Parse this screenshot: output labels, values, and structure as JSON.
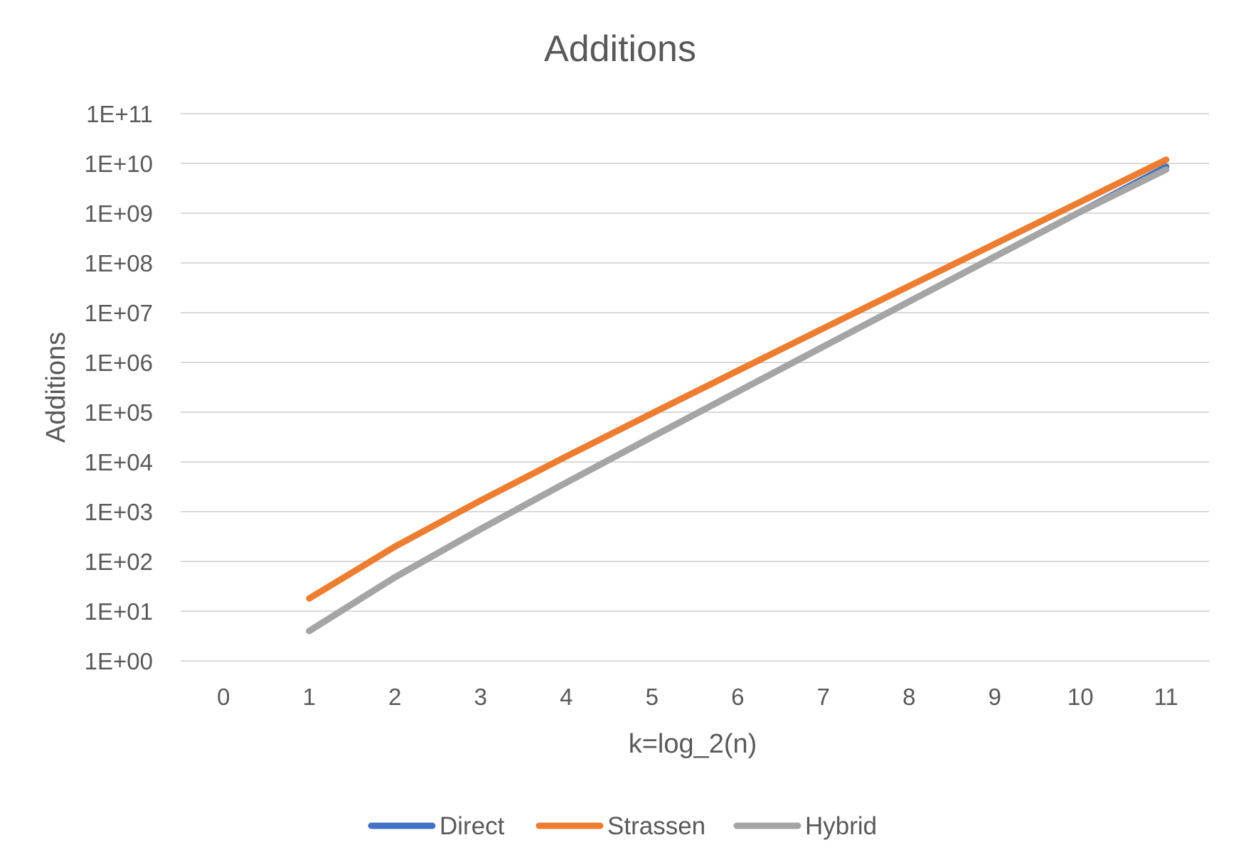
{
  "chart_data": {
    "type": "line",
    "title": "Additions",
    "xlabel": "k=log_2(n)",
    "ylabel": "Additions",
    "y_scale": "log",
    "ylim": [
      1,
      100000000000
    ],
    "grid": true,
    "legend_position": "bottom",
    "x_ticks": [
      "0",
      "1",
      "2",
      "3",
      "4",
      "5",
      "6",
      "7",
      "8",
      "9",
      "10",
      "11"
    ],
    "y_ticks": [
      "1E+00",
      "1E+01",
      "1E+02",
      "1E+03",
      "1E+04",
      "1E+05",
      "1E+06",
      "1E+07",
      "1E+08",
      "1E+09",
      "1E+10",
      "1E+11"
    ],
    "x": [
      1,
      2,
      3,
      4,
      5,
      6,
      7,
      8,
      9,
      10,
      11
    ],
    "series": [
      {
        "name": "Direct",
        "color": "#4472C4",
        "values": [
          4,
          48,
          448,
          3840,
          31744,
          258048,
          2080768,
          16711680,
          133955584,
          1072693248,
          8585740288
        ]
      },
      {
        "name": "Strassen",
        "color": "#ED7D31",
        "values": [
          18,
          198,
          1674,
          12870,
          94698,
          681318,
          4842954,
          34195590,
          240714378,
          1692512262,
          11893935786
        ]
      },
      {
        "name": "Hybrid",
        "color": "#A5A5A5",
        "values": [
          4,
          48,
          448,
          3840,
          31744,
          258048,
          2080768,
          16711680,
          133955584,
          1068498944,
          7530323968
        ]
      }
    ]
  }
}
